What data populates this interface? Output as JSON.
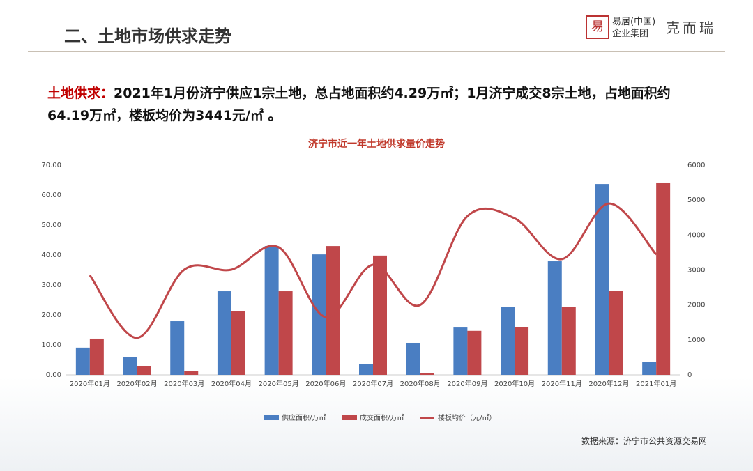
{
  "header": {
    "title": "二、土地市场供求走势",
    "logo_main": "易居(中国)",
    "logo_sub": "企业集团",
    "brand": "克而瑞"
  },
  "headline": {
    "label": "土地供求：",
    "text": "2021年1月份济宁供应1宗土地，总占地面积约4.29万㎡；1月济宁成交8宗土地，占地面积约64.19万㎡，楼板均价为3441元/㎡ 。"
  },
  "chart_data": {
    "type": "bar",
    "title": "济宁市近一年土地供求量价走势",
    "categories": [
      "2020年01月",
      "2020年02月",
      "2020年03月",
      "2020年04月",
      "2020年05月",
      "2020年06月",
      "2020年07月",
      "2020年08月",
      "2020年09月",
      "2020年10月",
      "2020年11月",
      "2020年12月",
      "2021年01月"
    ],
    "series": [
      {
        "name": "供应面积/万㎡",
        "color": "#4a7ec2",
        "values": [
          9.1,
          6.0,
          17.9,
          27.9,
          43.0,
          40.2,
          3.5,
          10.7,
          15.8,
          22.6,
          37.9,
          63.7,
          4.29
        ]
      },
      {
        "name": "成交面积/万㎡",
        "color": "#c0474a",
        "values": [
          12.1,
          3.0,
          1.2,
          21.2,
          27.9,
          43.0,
          39.8,
          0.5,
          14.7,
          16.0,
          22.6,
          28.1,
          64.19
        ]
      },
      {
        "name": "楼板均价（元/㎡）",
        "color": "#c0474a",
        "type": "line",
        "axis": "y2",
        "values": [
          2850,
          1060,
          3010,
          3010,
          3650,
          1650,
          3150,
          2000,
          4540,
          4480,
          3310,
          4900,
          3441
        ]
      }
    ],
    "ylim": [
      0,
      70
    ],
    "yticks": [
      {
        "value": 0,
        "label": "0.00"
      },
      {
        "value": 10,
        "label": "10.00"
      },
      {
        "value": 20,
        "label": "20.00"
      },
      {
        "value": 30,
        "label": "30.00"
      },
      {
        "value": 40,
        "label": "40.00"
      },
      {
        "value": 50,
        "label": "50.00"
      },
      {
        "value": 60,
        "label": "60.00"
      },
      {
        "value": 70,
        "label": "70.00"
      }
    ],
    "y2lim": [
      0,
      6000
    ],
    "y2ticks": [
      0,
      1000,
      2000,
      3000,
      4000,
      5000,
      6000
    ],
    "legend": "bottom"
  },
  "source": "数据来源：济宁市公共资源交易网"
}
